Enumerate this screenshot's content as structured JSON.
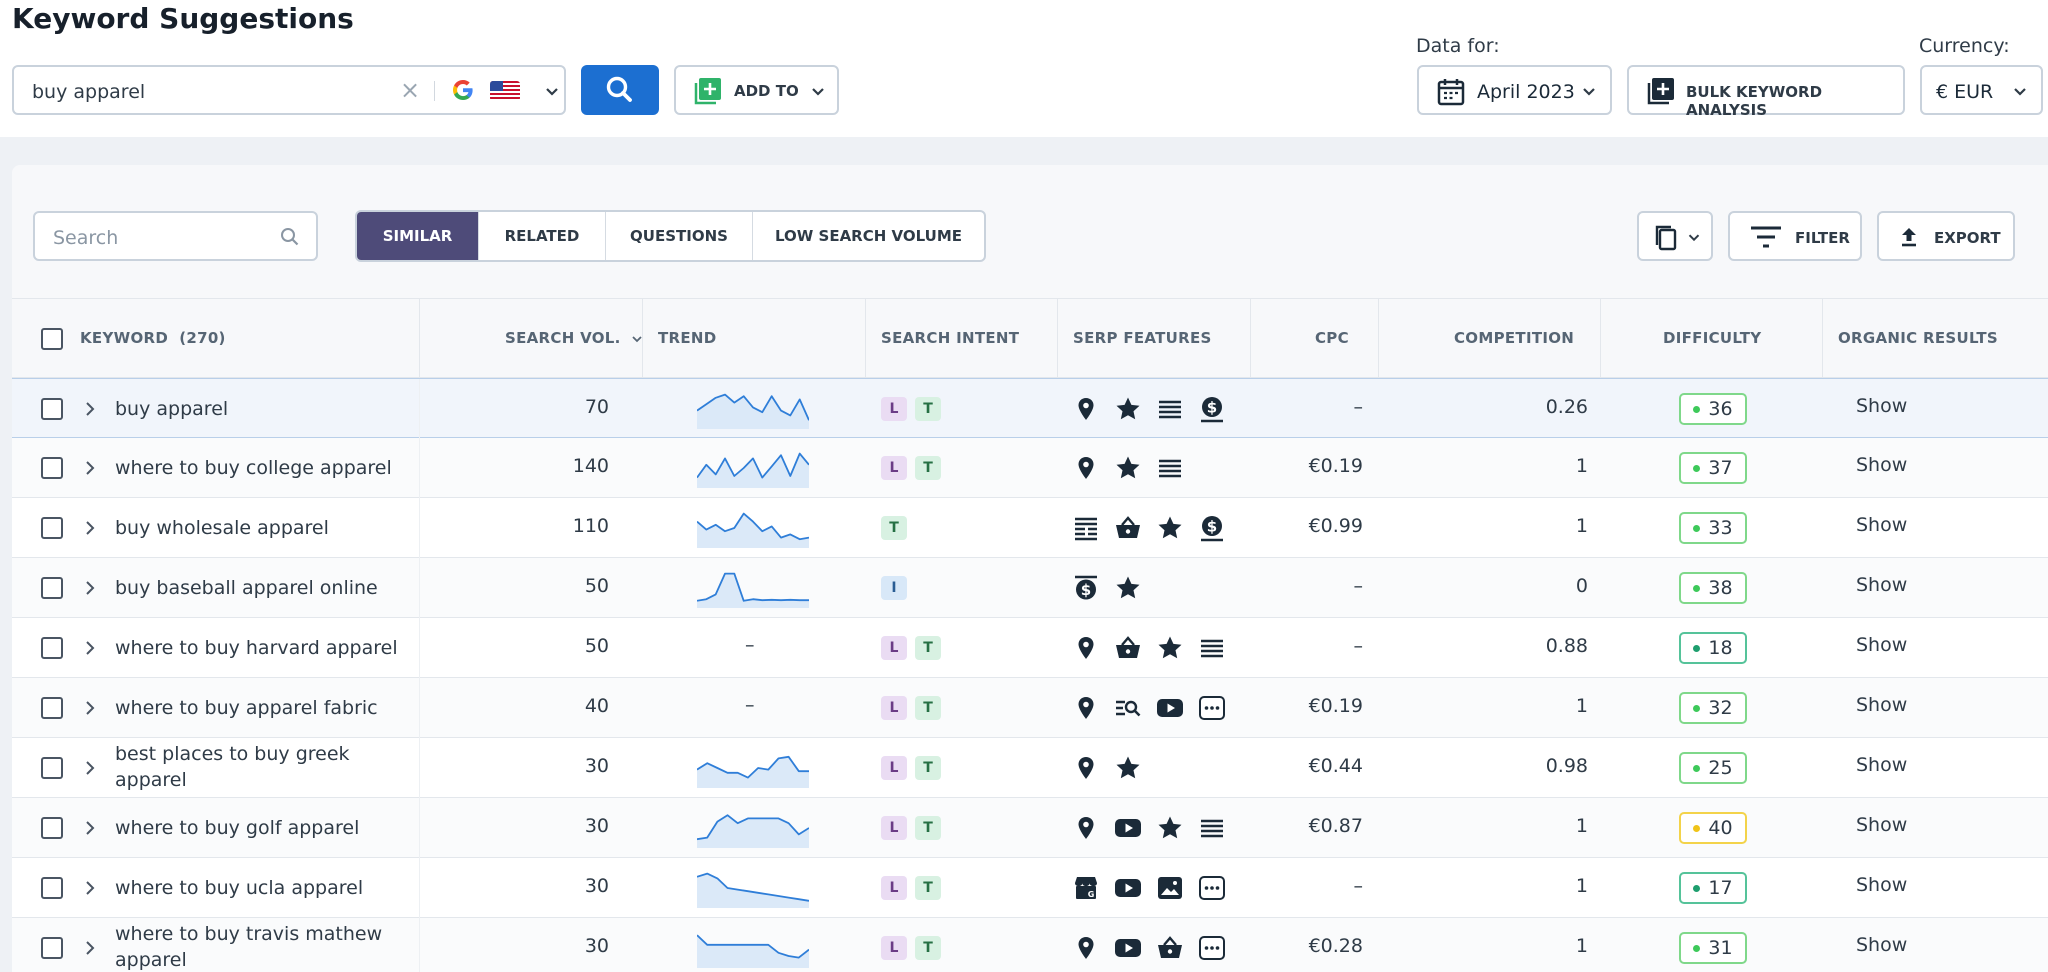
{
  "header": {
    "title": "Keyword Suggestions",
    "search_value": "buy apparel",
    "clear_symbol": "×",
    "add_to_label": "ADD TO",
    "data_for_label": "Data for:",
    "date_value": "April 2023",
    "bulk_label": "BULK KEYWORD ANALYSIS",
    "currency_label": "Currency:",
    "currency_value": "€ EUR"
  },
  "toolbar": {
    "search_placeholder": "Search",
    "tabs": [
      "SIMILAR",
      "RELATED",
      "QUESTIONS",
      "LOW SEARCH VOLUME"
    ],
    "active_tab": "SIMILAR",
    "filter_label": "FILTER",
    "export_label": "EXPORT"
  },
  "table": {
    "columns": {
      "keyword": "KEYWORD",
      "keyword_count": "(270)",
      "search_vol": "SEARCH VOL.",
      "trend": "TREND",
      "intent": "SEARCH INTENT",
      "serp": "SERP FEATURES",
      "cpc": "CPC",
      "competition": "COMPETITION",
      "difficulty": "DIFFICULTY",
      "organic": "ORGANIC RESULTS"
    },
    "rows": [
      {
        "keyword": "buy apparel",
        "vol": "70",
        "trend": [
          0.55,
          0.35,
          0.15,
          0.05,
          0.3,
          0.1,
          0.45,
          0.6,
          0.1,
          0.55,
          0.7,
          0.2,
          0.85
        ],
        "intent": [
          "L",
          "T"
        ],
        "serp": [
          "pin",
          "star",
          "list",
          "dollar"
        ],
        "cpc": "–",
        "comp": "0.26",
        "diff": "36",
        "diff_color": "green",
        "organic": "Show"
      },
      {
        "keyword": "where to buy college apparel",
        "vol": "140",
        "trend": [
          0.8,
          0.4,
          0.7,
          0.2,
          0.75,
          0.5,
          0.2,
          0.8,
          0.45,
          0.1,
          0.75,
          0.05,
          0.4
        ],
        "intent": [
          "L",
          "T"
        ],
        "serp": [
          "pin",
          "star",
          "list"
        ],
        "cpc": "€0.19",
        "comp": "1",
        "diff": "37",
        "diff_color": "green",
        "organic": "Show"
      },
      {
        "keyword": "buy wholesale apparel",
        "vol": "110",
        "trend": [
          0.3,
          0.55,
          0.4,
          0.6,
          0.5,
          0.05,
          0.3,
          0.6,
          0.45,
          0.8,
          0.7,
          0.85,
          0.8
        ],
        "intent": [
          "T"
        ],
        "serp": [
          "table",
          "basket",
          "star",
          "dollar"
        ],
        "cpc": "€0.99",
        "comp": "1",
        "diff": "33",
        "diff_color": "green",
        "organic": "Show"
      },
      {
        "keyword": "buy baseball apparel online",
        "vol": "50",
        "trend": [
          0.9,
          0.85,
          0.7,
          0.05,
          0.05,
          0.9,
          0.85,
          0.88,
          0.87,
          0.88,
          0.87,
          0.88,
          0.88
        ],
        "intent": [
          "I"
        ],
        "serp": [
          "cash",
          "star"
        ],
        "cpc": "–",
        "comp": "0",
        "diff": "38",
        "diff_color": "green",
        "organic": "Show"
      },
      {
        "keyword": "where to buy harvard apparel",
        "vol": "50",
        "trend": [],
        "intent": [
          "L",
          "T"
        ],
        "serp": [
          "pin",
          "basket",
          "star",
          "list"
        ],
        "cpc": "–",
        "comp": "0.88",
        "diff": "18",
        "diff_color": "teal",
        "organic": "Show"
      },
      {
        "keyword": "where to buy apparel fabric",
        "vol": "40",
        "trend": [],
        "intent": [
          "L",
          "T"
        ],
        "serp": [
          "pin",
          "search",
          "youtube",
          "more"
        ],
        "cpc": "€0.19",
        "comp": "1",
        "diff": "32",
        "diff_color": "green",
        "organic": "Show"
      },
      {
        "keyword": "best places to buy greek apparel",
        "vol": "30",
        "trend": [
          0.55,
          0.35,
          0.5,
          0.65,
          0.65,
          0.8,
          0.5,
          0.55,
          0.2,
          0.15,
          0.6,
          0.6
        ],
        "intent": [
          "L",
          "T"
        ],
        "serp": [
          "pin",
          "star"
        ],
        "cpc": "€0.44",
        "comp": "0.98",
        "diff": "25",
        "diff_color": "green",
        "organic": "Show"
      },
      {
        "keyword": "where to buy golf apparel",
        "vol": "30",
        "trend": [
          0.85,
          0.8,
          0.3,
          0.1,
          0.35,
          0.2,
          0.2,
          0.2,
          0.2,
          0.35,
          0.7,
          0.5
        ],
        "intent": [
          "L",
          "T"
        ],
        "serp": [
          "pin",
          "youtube",
          "star",
          "list"
        ],
        "cpc": "€0.87",
        "comp": "1",
        "diff": "40",
        "diff_color": "yellow",
        "organic": "Show"
      },
      {
        "keyword": "where to buy ucla apparel",
        "vol": "30",
        "trend": [
          0.15,
          0.05,
          0.2,
          0.5,
          0.55,
          0.6,
          0.65,
          0.7,
          0.75,
          0.8,
          0.85,
          0.9
        ],
        "intent": [
          "L",
          "T"
        ],
        "serp": [
          "store",
          "youtube",
          "image",
          "more"
        ],
        "cpc": "–",
        "comp": "1",
        "diff": "17",
        "diff_color": "teal",
        "organic": "Show"
      },
      {
        "keyword": "where to buy travis mathew apparel",
        "vol": "30",
        "trend": [
          0.1,
          0.4,
          0.4,
          0.4,
          0.4,
          0.4,
          0.4,
          0.4,
          0.65,
          0.75,
          0.8,
          0.55
        ],
        "intent": [
          "L",
          "T"
        ],
        "serp": [
          "pin",
          "youtube",
          "basket",
          "more"
        ],
        "cpc": "€0.28",
        "comp": "1",
        "diff": "31",
        "diff_color": "green",
        "organic": "Show"
      }
    ]
  },
  "colors": {
    "primary": "#1c6fd1",
    "tab_active": "#4e4b79",
    "trend_line": "#2f7ed8",
    "trend_fill": "#dbe9f8",
    "difficulty_green": "#3ec95a",
    "difficulty_yellow": "#f0c419",
    "difficulty_teal": "#1e9e6e"
  }
}
